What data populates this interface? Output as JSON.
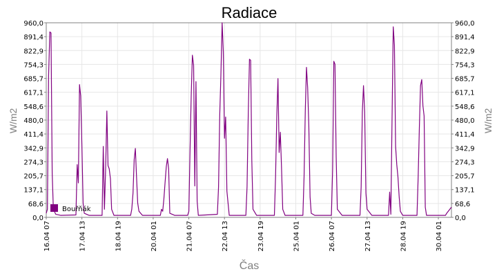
{
  "chart_data": {
    "type": "line",
    "title": "Radiace",
    "xlabel": "Čas",
    "ylabel": "W/m2",
    "ylabel_right": "W/m2",
    "ylim": [
      0,
      960
    ],
    "yticks": [
      "0,0",
      "68,6",
      "137,1",
      "205,7",
      "274,3",
      "342,9",
      "411,4",
      "480,0",
      "548,6",
      "617,1",
      "685,7",
      "754,3",
      "822,9",
      "891,4",
      "960,0"
    ],
    "grid": true,
    "legend_position": "bottom-left",
    "x_start": "2017-04-16 07:00",
    "x_end": "2017-04-30 12:00",
    "xticks": [
      {
        "label": "16.04 07",
        "t": "2017-04-16 07:00"
      },
      {
        "label": "17.04 13",
        "t": "2017-04-17 13:00"
      },
      {
        "label": "18.04 19",
        "t": "2017-04-18 19:00"
      },
      {
        "label": "20.04 01",
        "t": "2017-04-20 01:00"
      },
      {
        "label": "21.04 07",
        "t": "2017-04-21 07:00"
      },
      {
        "label": "22.04 13",
        "t": "2017-04-22 13:00"
      },
      {
        "label": "23.04 19",
        "t": "2017-04-23 19:00"
      },
      {
        "label": "25.04 01",
        "t": "2017-04-25 01:00"
      },
      {
        "label": "26.04 07",
        "t": "2017-04-26 07:00"
      },
      {
        "label": "27.04 13",
        "t": "2017-04-27 13:00"
      },
      {
        "label": "28.04 19",
        "t": "2017-04-28 19:00"
      },
      {
        "label": "30.04 01",
        "t": "2017-04-30 01:00"
      }
    ],
    "series": [
      {
        "name": "Bouřňák",
        "color": "#800080",
        "points": [
          [
            "2017-04-16 07:00",
            20
          ],
          [
            "2017-04-16 08:00",
            40
          ],
          [
            "2017-04-16 09:00",
            700
          ],
          [
            "2017-04-16 10:00",
            915
          ],
          [
            "2017-04-16 11:00",
            910
          ],
          [
            "2017-04-16 12:00",
            220
          ],
          [
            "2017-04-16 13:00",
            40
          ],
          [
            "2017-04-16 15:00",
            15
          ],
          [
            "2017-04-16 19:00",
            10
          ],
          [
            "2017-04-17 08:00",
            12
          ],
          [
            "2017-04-17 09:00",
            260
          ],
          [
            "2017-04-17 10:00",
            170
          ],
          [
            "2017-04-17 11:00",
            655
          ],
          [
            "2017-04-17 12:00",
            600
          ],
          [
            "2017-04-17 13:00",
            360
          ],
          [
            "2017-04-17 14:00",
            70
          ],
          [
            "2017-04-17 15:00",
            20
          ],
          [
            "2017-04-17 19:00",
            10
          ],
          [
            "2017-04-18 06:00",
            10
          ],
          [
            "2017-04-18 07:00",
            350
          ],
          [
            "2017-04-18 08:00",
            40
          ],
          [
            "2017-04-18 09:00",
            250
          ],
          [
            "2017-04-18 10:00",
            525
          ],
          [
            "2017-04-18 11:00",
            255
          ],
          [
            "2017-04-18 12:00",
            240
          ],
          [
            "2017-04-18 13:00",
            190
          ],
          [
            "2017-04-18 14:00",
            40
          ],
          [
            "2017-04-18 16:00",
            10
          ],
          [
            "2017-04-19 06:00",
            10
          ],
          [
            "2017-04-19 07:00",
            40
          ],
          [
            "2017-04-19 08:00",
            120
          ],
          [
            "2017-04-19 09:00",
            285
          ],
          [
            "2017-04-19 10:00",
            340
          ],
          [
            "2017-04-19 11:00",
            200
          ],
          [
            "2017-04-19 12:00",
            70
          ],
          [
            "2017-04-19 13:00",
            30
          ],
          [
            "2017-04-19 16:00",
            10
          ],
          [
            "2017-04-20 07:00",
            10
          ],
          [
            "2017-04-20 08:00",
            40
          ],
          [
            "2017-04-20 09:00",
            30
          ],
          [
            "2017-04-20 10:00",
            90
          ],
          [
            "2017-04-20 11:00",
            170
          ],
          [
            "2017-04-20 12:00",
            250
          ],
          [
            "2017-04-20 13:00",
            290
          ],
          [
            "2017-04-20 14:00",
            240
          ],
          [
            "2017-04-20 15:00",
            20
          ],
          [
            "2017-04-20 19:00",
            10
          ],
          [
            "2017-04-21 06:00",
            10
          ],
          [
            "2017-04-21 07:00",
            30
          ],
          [
            "2017-04-21 08:00",
            330
          ],
          [
            "2017-04-21 09:00",
            600
          ],
          [
            "2017-04-21 10:00",
            800
          ],
          [
            "2017-04-21 11:00",
            750
          ],
          [
            "2017-04-21 12:00",
            155
          ],
          [
            "2017-04-21 13:00",
            670
          ],
          [
            "2017-04-21 14:00",
            80
          ],
          [
            "2017-04-21 15:00",
            10
          ],
          [
            "2017-04-22 07:00",
            15
          ],
          [
            "2017-04-22 08:00",
            150
          ],
          [
            "2017-04-22 09:00",
            500
          ],
          [
            "2017-04-22 10:00",
            700
          ],
          [
            "2017-04-22 11:00",
            960
          ],
          [
            "2017-04-22 12:00",
            820
          ],
          [
            "2017-04-22 13:00",
            390
          ],
          [
            "2017-04-22 14:00",
            495
          ],
          [
            "2017-04-22 15:00",
            130
          ],
          [
            "2017-04-22 17:00",
            10
          ],
          [
            "2017-04-23 07:00",
            10
          ],
          [
            "2017-04-23 08:00",
            150
          ],
          [
            "2017-04-23 09:00",
            500
          ],
          [
            "2017-04-23 10:00",
            780
          ],
          [
            "2017-04-23 11:00",
            775
          ],
          [
            "2017-04-23 12:00",
            280
          ],
          [
            "2017-04-23 13:00",
            40
          ],
          [
            "2017-04-23 16:00",
            10
          ],
          [
            "2017-04-24 07:00",
            10
          ],
          [
            "2017-04-24 08:00",
            200
          ],
          [
            "2017-04-24 09:00",
            500
          ],
          [
            "2017-04-24 10:00",
            685
          ],
          [
            "2017-04-24 11:00",
            320
          ],
          [
            "2017-04-24 12:00",
            420
          ],
          [
            "2017-04-24 13:00",
            250
          ],
          [
            "2017-04-24 14:00",
            40
          ],
          [
            "2017-04-24 16:00",
            10
          ],
          [
            "2017-04-25 07:00",
            10
          ],
          [
            "2017-04-25 08:00",
            200
          ],
          [
            "2017-04-25 09:00",
            530
          ],
          [
            "2017-04-25 10:00",
            740
          ],
          [
            "2017-04-25 11:00",
            640
          ],
          [
            "2017-04-25 12:00",
            450
          ],
          [
            "2017-04-25 13:00",
            100
          ],
          [
            "2017-04-25 14:00",
            20
          ],
          [
            "2017-04-25 17:00",
            10
          ],
          [
            "2017-04-26 07:00",
            10
          ],
          [
            "2017-04-26 08:00",
            240
          ],
          [
            "2017-04-26 09:00",
            770
          ],
          [
            "2017-04-26 10:00",
            755
          ],
          [
            "2017-04-26 11:00",
            300
          ],
          [
            "2017-04-26 12:00",
            40
          ],
          [
            "2017-04-26 16:00",
            10
          ],
          [
            "2017-04-27 07:00",
            10
          ],
          [
            "2017-04-27 08:00",
            150
          ],
          [
            "2017-04-27 09:00",
            520
          ],
          [
            "2017-04-27 10:00",
            650
          ],
          [
            "2017-04-27 11:00",
            520
          ],
          [
            "2017-04-27 12:00",
            120
          ],
          [
            "2017-04-27 13:00",
            40
          ],
          [
            "2017-04-27 17:00",
            10
          ],
          [
            "2017-04-28 07:00",
            10
          ],
          [
            "2017-04-28 08:00",
            125
          ],
          [
            "2017-04-28 09:00",
            15
          ],
          [
            "2017-04-28 10:00",
            470
          ],
          [
            "2017-04-28 11:00",
            940
          ],
          [
            "2017-04-28 12:00",
            850
          ],
          [
            "2017-04-28 13:00",
            350
          ],
          [
            "2017-04-28 14:00",
            260
          ],
          [
            "2017-04-28 15:00",
            200
          ],
          [
            "2017-04-28 16:00",
            100
          ],
          [
            "2017-04-28 17:00",
            30
          ],
          [
            "2017-04-28 19:00",
            10
          ],
          [
            "2017-04-29 07:00",
            10
          ],
          [
            "2017-04-29 08:00",
            200
          ],
          [
            "2017-04-29 09:00",
            440
          ],
          [
            "2017-04-29 10:00",
            650
          ],
          [
            "2017-04-29 11:00",
            680
          ],
          [
            "2017-04-29 12:00",
            550
          ],
          [
            "2017-04-29 13:00",
            500
          ],
          [
            "2017-04-29 14:00",
            50
          ],
          [
            "2017-04-29 15:00",
            10
          ],
          [
            "2017-04-30 07:00",
            10
          ],
          [
            "2017-04-30 08:00",
            20
          ],
          [
            "2017-04-30 12:00",
            50
          ]
        ]
      }
    ]
  }
}
